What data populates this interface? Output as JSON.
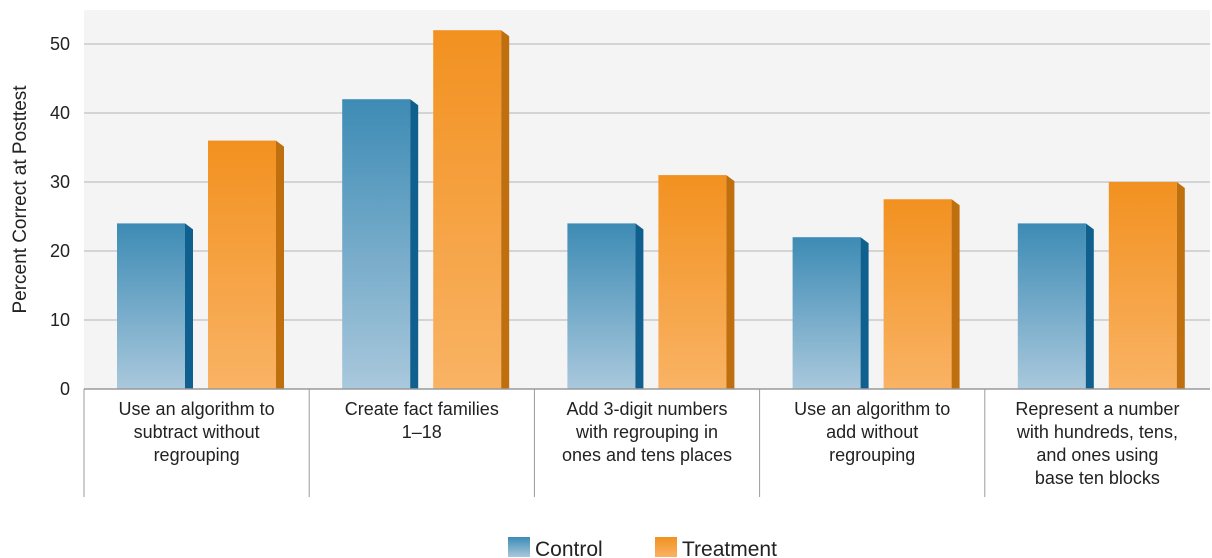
{
  "chart_data": {
    "type": "bar",
    "title": "",
    "xlabel": "",
    "ylabel": "Percent Correct at Posttest",
    "ylim": [
      0,
      55
    ],
    "yticks": [
      0,
      10,
      20,
      30,
      40,
      50
    ],
    "grid": true,
    "legend_position": "bottom",
    "categories": [
      "Use an algorithm to subtract without regrouping",
      "Create fact families 1–18",
      "Add 3-digit numbers with regrouping in ones and tens places",
      "Use an algorithm to add without regrouping",
      "Represent a number with hundreds, tens, and ones using base ten blocks"
    ],
    "category_lines": [
      [
        "Use an algorithm to",
        "subtract without",
        "regrouping"
      ],
      [
        "Create fact families",
        "1–18"
      ],
      [
        "Add 3-digit numbers",
        "with regrouping in",
        "ones and tens places"
      ],
      [
        "Use an algorithm to",
        "add without",
        "regrouping"
      ],
      [
        "Represent a number",
        "with hundreds, tens,",
        "and ones using",
        "base ten blocks"
      ]
    ],
    "series": [
      {
        "name": "Control",
        "values": [
          24,
          42,
          24,
          22,
          24
        ],
        "color_top": "#3d8bb5",
        "color_bottom": "#a9c8dc",
        "color_side": "#0f5f8f"
      },
      {
        "name": "Treatment",
        "values": [
          36,
          52,
          31,
          27.5,
          30
        ],
        "color_top": "#f29120",
        "color_bottom": "#f9b364",
        "color_side": "#c06f0e"
      }
    ]
  },
  "colors": {
    "plot_background": "#f4f4f4",
    "gridline": "#b5b5b5",
    "axis": "#9a9a9a"
  }
}
